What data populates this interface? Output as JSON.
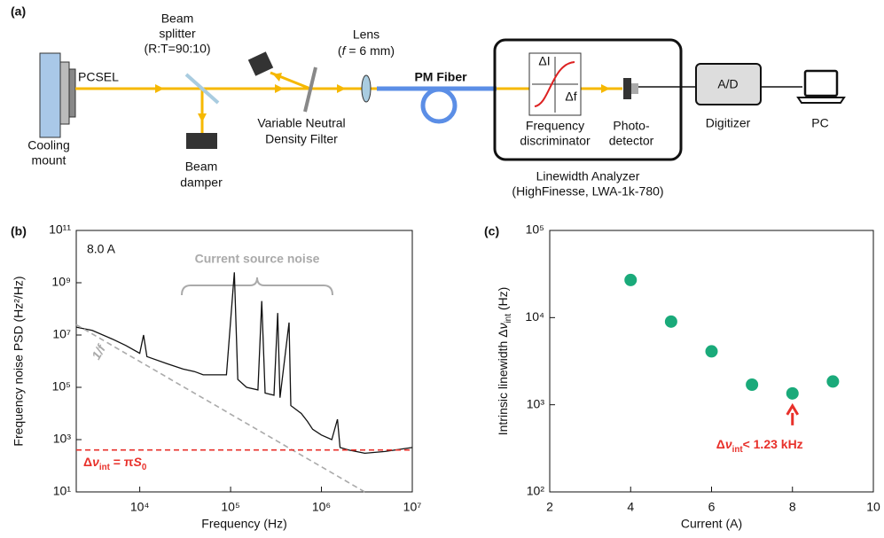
{
  "diagram": {
    "panel_label": "(a)",
    "beam_splitter": [
      "Beam",
      "splitter",
      "(R:T=90:10)"
    ],
    "laser": "PCSEL",
    "cooling_mount": [
      "Cooling",
      "mount"
    ],
    "beam_damper": [
      "Beam",
      "damper"
    ],
    "nd_filter": [
      "Variable Neutral",
      "Density Filter"
    ],
    "lens": "Lens",
    "lens_focal": [
      "(",
      "f",
      " = 6 mm)"
    ],
    "fiber": "PM Fiber",
    "plot_y": "ΔI",
    "plot_x": "Δf",
    "discriminator": [
      "Frequency",
      "discriminator"
    ],
    "photodetector": [
      "Photo-",
      "detector"
    ],
    "analyzer": [
      "Linewidth Analyzer",
      "(HighFinesse, LWA-1k-780)"
    ],
    "adc": "A/D",
    "digitizer": "Digitizer",
    "pc": "PC"
  },
  "chart_data": [
    {
      "type": "line",
      "panel_label": "(b)",
      "x_label": "Frequency (Hz)",
      "y_label": "Frequency noise PSD (Hz²/Hz)",
      "xscale": "log",
      "yscale": "log",
      "xlim": [
        2000,
        10000000
      ],
      "ylim": [
        10,
        100000000000
      ],
      "xticks": [
        {
          "value": 10000,
          "label": "10⁴"
        },
        {
          "value": 100000,
          "label": "10⁵"
        },
        {
          "value": 1000000,
          "label": "10⁶"
        },
        {
          "value": 10000000,
          "label": "10⁷"
        }
      ],
      "yticks": [
        {
          "value": 10,
          "label": "10¹"
        },
        {
          "value": 1000,
          "label": "10³"
        },
        {
          "value": 100000,
          "label": "10⁵"
        },
        {
          "value": 10000000,
          "label": "10⁷"
        },
        {
          "value": 1000000000,
          "label": "10⁹"
        },
        {
          "value": 100000000000,
          "label": "10¹¹"
        }
      ],
      "annotations": {
        "current": "8.0 A",
        "noise": "Current source noise",
        "slope": "1/f",
        "floor": [
          "Δ",
          "ν",
          "int",
          " = π",
          "S",
          "0"
        ]
      },
      "series": [
        {
          "color": "#111111",
          "x": [
            2000,
            3000,
            5000,
            7000,
            10000,
            11000,
            12000,
            20000,
            30000,
            40000,
            50000,
            70000,
            90000,
            110000,
            120000,
            150000,
            200000,
            220000,
            240000,
            300000,
            330000,
            350000,
            440000,
            460000,
            600000,
            700000,
            800000,
            1000000,
            1300000,
            1500000,
            1600000,
            2000000,
            3000000,
            5000000,
            10000000
          ],
          "values": [
            20000000,
            15000000,
            7000000,
            4000000,
            2000000,
            10000000,
            1500000,
            800000,
            500000,
            400000,
            300000,
            300000,
            300000,
            2500000000,
            200000,
            100000,
            80000,
            200000000,
            60000,
            50000,
            70000000,
            40000,
            30000000,
            20000,
            10000,
            5000,
            2500,
            1500,
            1000,
            6000,
            500,
            400,
            300,
            350,
            500
          ]
        },
        {
          "color": "#aaaaaa",
          "dashed": true,
          "x": [
            2000,
            3000000
          ],
          "values": [
            25000000,
            10
          ]
        },
        {
          "color": "#e8302a",
          "dashed": true,
          "x": [
            2000,
            10000000
          ],
          "values": [
            400,
            400
          ]
        }
      ]
    },
    {
      "type": "scatter",
      "panel_label": "(c)",
      "x_label": "Current (A)",
      "y_label": [
        "Intrinsic linewidth Δ",
        "ν",
        "int",
        " (Hz)"
      ],
      "yscale": "log",
      "xlim": [
        2,
        10
      ],
      "ylim": [
        100,
        100000
      ],
      "xticks": [
        2,
        4,
        6,
        8,
        10
      ],
      "yticks": [
        {
          "value": 100,
          "label": "10²"
        },
        {
          "value": 1000,
          "label": "10³"
        },
        {
          "value": 10000,
          "label": "10⁴"
        },
        {
          "value": 100000,
          "label": "10⁵"
        }
      ],
      "color": "#1aaa7a",
      "x": [
        4,
        5,
        6,
        7,
        8,
        9
      ],
      "values": [
        27000,
        9000,
        4100,
        1700,
        1350,
        1850
      ],
      "annotation": [
        "Δ",
        "ν",
        "int",
        "< 1.23 kHz"
      ],
      "annotation_x": 8,
      "annotation_color": "#e8302a"
    }
  ]
}
